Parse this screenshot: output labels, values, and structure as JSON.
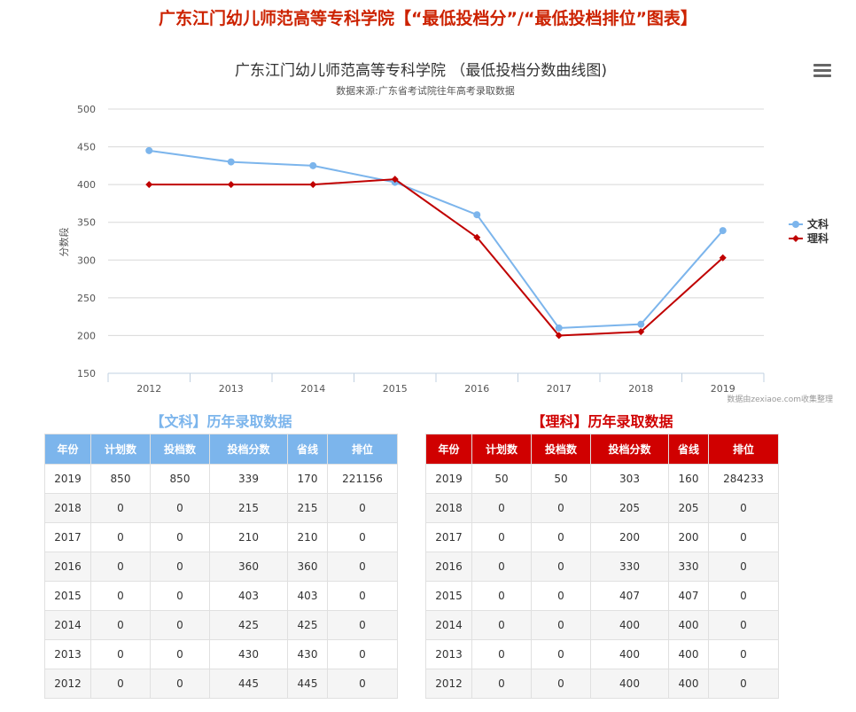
{
  "page_title": "广东江门幼儿师范高等专科学院【“最低投档分”/“最低投档排位”图表】",
  "chart_data": {
    "type": "line",
    "title": "广东江门幼儿师范高等专科学院 （最低投档分数曲线图)",
    "subtitle": "数据来源:广东省考试院往年高考录取数据",
    "ylabel": "分数段",
    "xlabel": "",
    "categories": [
      "2012",
      "2013",
      "2014",
      "2015",
      "2016",
      "2017",
      "2018",
      "2019"
    ],
    "ylim": [
      150,
      500
    ],
    "yticks": [
      150,
      200,
      250,
      300,
      350,
      400,
      450,
      500
    ],
    "grid": true,
    "legend_position": "right",
    "credit": "数据由zexiaoe.com收集整理",
    "series": [
      {
        "name": "文科",
        "color": "#7cb5ec",
        "marker": "circle",
        "values": [
          445,
          430,
          425,
          403,
          360,
          210,
          215,
          339
        ]
      },
      {
        "name": "理科",
        "color": "#c00000",
        "marker": "diamond",
        "values": [
          400,
          400,
          400,
          407,
          330,
          200,
          205,
          303
        ]
      }
    ]
  },
  "tables": {
    "columns": [
      "年份",
      "计划数",
      "投档数",
      "投档分数",
      "省线",
      "排位"
    ],
    "wenke": {
      "title": "【文科】历年录取数据",
      "color": "#7cb5ec",
      "rows": [
        [
          "2019",
          "850",
          "850",
          "339",
          "170",
          "221156"
        ],
        [
          "2018",
          "0",
          "0",
          "215",
          "215",
          "0"
        ],
        [
          "2017",
          "0",
          "0",
          "210",
          "210",
          "0"
        ],
        [
          "2016",
          "0",
          "0",
          "360",
          "360",
          "0"
        ],
        [
          "2015",
          "0",
          "0",
          "403",
          "403",
          "0"
        ],
        [
          "2014",
          "0",
          "0",
          "425",
          "425",
          "0"
        ],
        [
          "2013",
          "0",
          "0",
          "430",
          "430",
          "0"
        ],
        [
          "2012",
          "0",
          "0",
          "445",
          "445",
          "0"
        ]
      ]
    },
    "like": {
      "title": "【理科】历年录取数据",
      "color": "#d00000",
      "rows": [
        [
          "2019",
          "50",
          "50",
          "303",
          "160",
          "284233"
        ],
        [
          "2018",
          "0",
          "0",
          "205",
          "205",
          "0"
        ],
        [
          "2017",
          "0",
          "0",
          "200",
          "200",
          "0"
        ],
        [
          "2016",
          "0",
          "0",
          "330",
          "330",
          "0"
        ],
        [
          "2015",
          "0",
          "0",
          "407",
          "407",
          "0"
        ],
        [
          "2014",
          "0",
          "0",
          "400",
          "400",
          "0"
        ],
        [
          "2013",
          "0",
          "0",
          "400",
          "400",
          "0"
        ],
        [
          "2012",
          "0",
          "0",
          "400",
          "400",
          "0"
        ]
      ]
    }
  }
}
